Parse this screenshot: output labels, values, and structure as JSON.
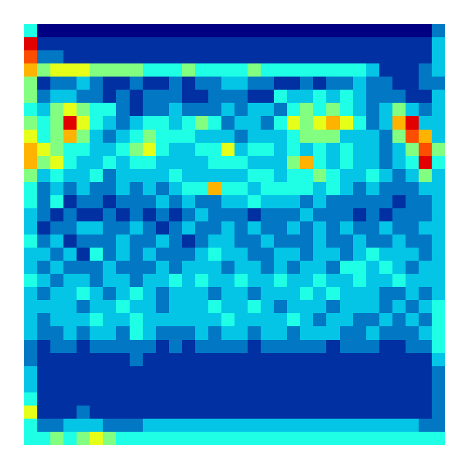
{
  "chart_data": {
    "type": "heatmap",
    "color": "Jet",
    "color_range": [
      0,
      10
    ],
    "tick_labels": false,
    "cells": [
      [
        4,
        0,
        0,
        0,
        0,
        0,
        0,
        0,
        0,
        0,
        0,
        0,
        0,
        0,
        0,
        0,
        0,
        0,
        0,
        0,
        0,
        0,
        0,
        0,
        0,
        0,
        0,
        0,
        0,
        0,
        0,
        2
      ],
      [
        9,
        1,
        1,
        1,
        1,
        1,
        1,
        1,
        1,
        1,
        1,
        1,
        1,
        1,
        1,
        1,
        1,
        1,
        1,
        1,
        1,
        1,
        1,
        1,
        1,
        1,
        1,
        1,
        1,
        1,
        1,
        3
      ],
      [
        8,
        2,
        2,
        1,
        1,
        1,
        1,
        1,
        1,
        1,
        1,
        1,
        1,
        1,
        1,
        1,
        1,
        1,
        1,
        1,
        1,
        1,
        1,
        1,
        1,
        1,
        1,
        1,
        1,
        1,
        1,
        3
      ],
      [
        7,
        5,
        6,
        6,
        6,
        5,
        5,
        5,
        5,
        4,
        4,
        4,
        5,
        4,
        4,
        4,
        4,
        5,
        4,
        4,
        4,
        4,
        4,
        4,
        4,
        4,
        3,
        1,
        1,
        1,
        2,
        3
      ],
      [
        5,
        1,
        2,
        2,
        3,
        2,
        1,
        1,
        2,
        1,
        1,
        2,
        1,
        2,
        2,
        3,
        3,
        2,
        2,
        1,
        1,
        2,
        1,
        2,
        2,
        3,
        2,
        2,
        1,
        1,
        2,
        2
      ],
      [
        5,
        2,
        3,
        3,
        2,
        2,
        1,
        2,
        1,
        2,
        2,
        2,
        1,
        1,
        2,
        2,
        2,
        1,
        1,
        4,
        3,
        3,
        4,
        3,
        4,
        3,
        2,
        2,
        2,
        1,
        1,
        3
      ],
      [
        4,
        3,
        5,
        6,
        5,
        4,
        4,
        2,
        1,
        2,
        2,
        3,
        2,
        2,
        2,
        3,
        2,
        3,
        3,
        2,
        4,
        5,
        4,
        5,
        4,
        3,
        2,
        3,
        5,
        3,
        2,
        3
      ],
      [
        5,
        4,
        5,
        9,
        6,
        4,
        3,
        2,
        3,
        4,
        4,
        3,
        4,
        5,
        4,
        2,
        3,
        3,
        2,
        4,
        6,
        5,
        6,
        7,
        6,
        4,
        2,
        3,
        7,
        9,
        3,
        3
      ],
      [
        6,
        4,
        5,
        7,
        5,
        3,
        2,
        3,
        4,
        5,
        4,
        4,
        4,
        3,
        3,
        3,
        2,
        3,
        3,
        3,
        4,
        5,
        5,
        5,
        3,
        3,
        3,
        2,
        5,
        8,
        7,
        3
      ],
      [
        7,
        6,
        5,
        4,
        4,
        3,
        3,
        4,
        5,
        6,
        4,
        3,
        3,
        4,
        4,
        6,
        3,
        4,
        4,
        3,
        4,
        3,
        4,
        3,
        4,
        3,
        3,
        2,
        3,
        5,
        8,
        5
      ],
      [
        7,
        5,
        6,
        4,
        3,
        3,
        4,
        3,
        4,
        4,
        3,
        3,
        3,
        3,
        4,
        4,
        4,
        3,
        3,
        3,
        5,
        7,
        4,
        3,
        4,
        3,
        3,
        2,
        3,
        4,
        9,
        4
      ],
      [
        5,
        3,
        4,
        3,
        3,
        4,
        2,
        3,
        3,
        3,
        3,
        4,
        3,
        3,
        3,
        3,
        3,
        4,
        4,
        3,
        4,
        4,
        5,
        4,
        3,
        3,
        4,
        3,
        2,
        3,
        5,
        3
      ],
      [
        4,
        2,
        3,
        2,
        3,
        2,
        2,
        3,
        2,
        3,
        2,
        3,
        4,
        4,
        7,
        4,
        4,
        3,
        4,
        4,
        4,
        4,
        3,
        4,
        3,
        2,
        3,
        2,
        2,
        2,
        3,
        3
      ],
      [
        4,
        2,
        4,
        1,
        2,
        2,
        1,
        2,
        2,
        2,
        3,
        2,
        3,
        2,
        2,
        3,
        3,
        4,
        3,
        3,
        3,
        2,
        3,
        2,
        2,
        2,
        2,
        2,
        1,
        2,
        2,
        3
      ],
      [
        3,
        2,
        1,
        2,
        1,
        1,
        2,
        1,
        2,
        1,
        2,
        1,
        2,
        3,
        2,
        2,
        2,
        1,
        2,
        2,
        2,
        3,
        2,
        2,
        2,
        1,
        2,
        1,
        2,
        2,
        2,
        3
      ],
      [
        3,
        1,
        2,
        2,
        3,
        3,
        2,
        2,
        3,
        2,
        1,
        2,
        3,
        2,
        2,
        3,
        2,
        3,
        2,
        2,
        3,
        2,
        3,
        2,
        3,
        2,
        2,
        3,
        2,
        2,
        3,
        3
      ],
      [
        4,
        2,
        3,
        1,
        2,
        2,
        2,
        3,
        2,
        2,
        3,
        2,
        1,
        2,
        3,
        3,
        2,
        2,
        3,
        2,
        2,
        2,
        3,
        2,
        2,
        3,
        2,
        2,
        3,
        2,
        2,
        3
      ],
      [
        3,
        3,
        2,
        3,
        1,
        4,
        2,
        3,
        2,
        3,
        2,
        2,
        2,
        3,
        4,
        3,
        3,
        2,
        2,
        3,
        3,
        2,
        3,
        3,
        2,
        3,
        4,
        3,
        3,
        3,
        2,
        3
      ],
      [
        3,
        2,
        3,
        2,
        2,
        2,
        3,
        2,
        2,
        2,
        3,
        2,
        3,
        3,
        3,
        2,
        3,
        3,
        2,
        3,
        2,
        3,
        3,
        2,
        4,
        4,
        3,
        4,
        3,
        2,
        3,
        3
      ],
      [
        4,
        3,
        2,
        3,
        3,
        2,
        3,
        3,
        2,
        3,
        3,
        4,
        3,
        4,
        3,
        3,
        4,
        3,
        3,
        4,
        3,
        3,
        4,
        3,
        3,
        4,
        3,
        3,
        4,
        3,
        3,
        3
      ],
      [
        3,
        2,
        3,
        3,
        4,
        3,
        2,
        3,
        4,
        3,
        2,
        3,
        3,
        3,
        2,
        3,
        3,
        2,
        3,
        3,
        3,
        4,
        3,
        4,
        3,
        3,
        3,
        2,
        2,
        3,
        2,
        3
      ],
      [
        3,
        3,
        3,
        3,
        2,
        3,
        3,
        4,
        3,
        3,
        2,
        3,
        3,
        3,
        4,
        3,
        3,
        4,
        3,
        2,
        3,
        3,
        3,
        2,
        3,
        3,
        3,
        2,
        3,
        2,
        3,
        4
      ],
      [
        3,
        2,
        3,
        3,
        3,
        4,
        3,
        3,
        4,
        3,
        3,
        3,
        3,
        3,
        3,
        4,
        3,
        3,
        3,
        3,
        4,
        3,
        2,
        3,
        3,
        2,
        2,
        3,
        2,
        3,
        2,
        4
      ],
      [
        3,
        2,
        2,
        3,
        2,
        3,
        3,
        2,
        4,
        3,
        2,
        2,
        2,
        3,
        2,
        3,
        3,
        2,
        3,
        3,
        2,
        3,
        3,
        3,
        2,
        2,
        3,
        2,
        2,
        2,
        3,
        4
      ],
      [
        2,
        1,
        2,
        2,
        1,
        2,
        2,
        2,
        2,
        2,
        1,
        2,
        1,
        2,
        2,
        2,
        2,
        1,
        2,
        2,
        2,
        2,
        2,
        1,
        2,
        2,
        2,
        1,
        1,
        2,
        2,
        4
      ],
      [
        2,
        1,
        1,
        1,
        1,
        1,
        1,
        1,
        2,
        1,
        1,
        1,
        1,
        1,
        1,
        1,
        1,
        1,
        1,
        1,
        1,
        1,
        1,
        1,
        1,
        1,
        1,
        1,
        1,
        1,
        1,
        3
      ],
      [
        3,
        1,
        1,
        1,
        1,
        1,
        1,
        1,
        1,
        1,
        1,
        1,
        1,
        1,
        1,
        1,
        1,
        1,
        1,
        1,
        1,
        1,
        1,
        1,
        1,
        1,
        1,
        1,
        1,
        1,
        1,
        2
      ],
      [
        3,
        1,
        1,
        1,
        1,
        1,
        1,
        1,
        1,
        1,
        1,
        1,
        1,
        1,
        1,
        1,
        1,
        1,
        1,
        1,
        1,
        1,
        1,
        1,
        1,
        1,
        1,
        1,
        1,
        1,
        1,
        2
      ],
      [
        4,
        1,
        1,
        1,
        1,
        1,
        1,
        1,
        1,
        1,
        1,
        1,
        1,
        1,
        1,
        1,
        1,
        1,
        1,
        1,
        1,
        1,
        1,
        1,
        1,
        1,
        1,
        1,
        1,
        1,
        1,
        2
      ],
      [
        6,
        1,
        1,
        1,
        2,
        1,
        1,
        1,
        1,
        1,
        1,
        1,
        1,
        1,
        1,
        1,
        1,
        1,
        1,
        1,
        1,
        1,
        1,
        1,
        1,
        1,
        1,
        1,
        1,
        1,
        1,
        2
      ],
      [
        4,
        2,
        2,
        3,
        3,
        3,
        2,
        2,
        2,
        3,
        3,
        3,
        3,
        3,
        3,
        3,
        3,
        3,
        3,
        3,
        3,
        3,
        3,
        3,
        3,
        3,
        3,
        3,
        3,
        3,
        2,
        2
      ],
      [
        4,
        4,
        5,
        4,
        5,
        6,
        5,
        4,
        4,
        4,
        4,
        4,
        4,
        4,
        4,
        4,
        4,
        4,
        4,
        4,
        4,
        4,
        4,
        4,
        4,
        4,
        4,
        4,
        4,
        4,
        4,
        4
      ]
    ]
  }
}
